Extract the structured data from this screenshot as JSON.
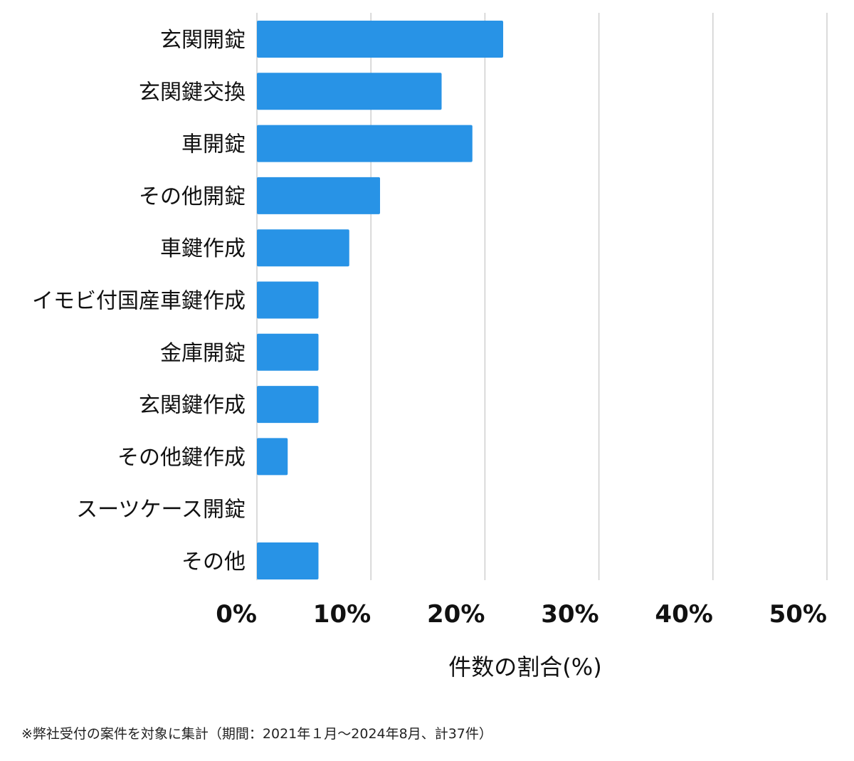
{
  "chart_data": {
    "type": "bar",
    "orientation": "horizontal",
    "categories": [
      "玄関開錠",
      "玄関鍵交換",
      "車開錠",
      "その他開錠",
      "車鍵作成",
      "イモビ付国産車鍵作成",
      "金庫開錠",
      "玄関鍵作成",
      "その他鍵作成",
      "スーツケース開錠",
      "その他"
    ],
    "values": [
      21.6,
      16.2,
      18.9,
      10.8,
      8.1,
      5.4,
      5.4,
      5.4,
      2.7,
      0,
      5.4
    ],
    "xlabel": "件数の割合(%)",
    "xlim": [
      0,
      50
    ],
    "xticks": [
      0,
      10,
      20,
      30,
      40,
      50
    ],
    "xtick_labels": [
      "0%",
      "10%",
      "20%",
      "30%",
      "40%",
      "50%"
    ],
    "grid": true,
    "bar_color": "#2893e6"
  },
  "footnote": "※弊社受付の案件を対象に集計（期間：2021年１月〜2024年8月、計37件）"
}
